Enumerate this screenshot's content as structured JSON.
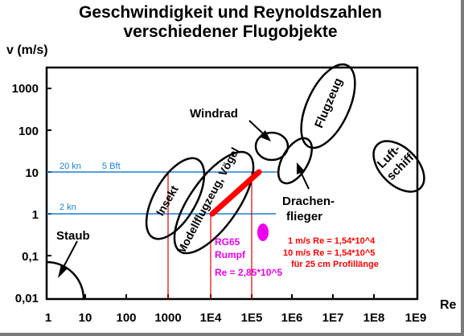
{
  "title": {
    "line1": "Geschwindigkeit und Reynoldszahlen",
    "line2": "verschiedener Flugobjekte"
  },
  "chart_data": {
    "type": "diagram",
    "x_label": "Re",
    "y_label": "v (m/s)",
    "x_scale": "log",
    "y_scale": "log",
    "x_ticks": [
      "1",
      "10",
      "100",
      "1000",
      "1E4",
      "1E5",
      "1E6",
      "1E7",
      "1E8",
      "1E9"
    ],
    "y_ticks": [
      "1000",
      "100",
      "10",
      "1",
      "0,1",
      "0,01"
    ],
    "reference_lines": [
      {
        "label": "20 kn",
        "label2": "5 Bft",
        "y": 10
      },
      {
        "label": "2 kn",
        "y": 1
      }
    ],
    "vertical_lines_re": [
      1000,
      10000,
      100000
    ],
    "regions": [
      {
        "name": "Staub"
      },
      {
        "name": "Insekt"
      },
      {
        "name": "Modellflugzeug, Vögel"
      },
      {
        "name": "Windrad"
      },
      {
        "name": "Flugzeug"
      },
      {
        "name": "Drachen-",
        "name2": "flieger"
      },
      {
        "name": "Luft-",
        "name2": "schiff"
      }
    ],
    "rg65": {
      "label1": "RG65",
      "label2": "Rumpf",
      "re_text": "Re = 2,85*10^5",
      "color": "#ee00ee"
    },
    "red_band": {
      "color": "#ff0000",
      "line1": "1 m/s  Re = 1,54*10^4",
      "line2": "10 m/s  Re = 1,54*10^5",
      "line3": "für 25 cm Profillänge"
    },
    "colors": {
      "reference_line": "#1a7fd6",
      "vertical_line": "#e00000",
      "frame": "#7a7a7a"
    }
  }
}
